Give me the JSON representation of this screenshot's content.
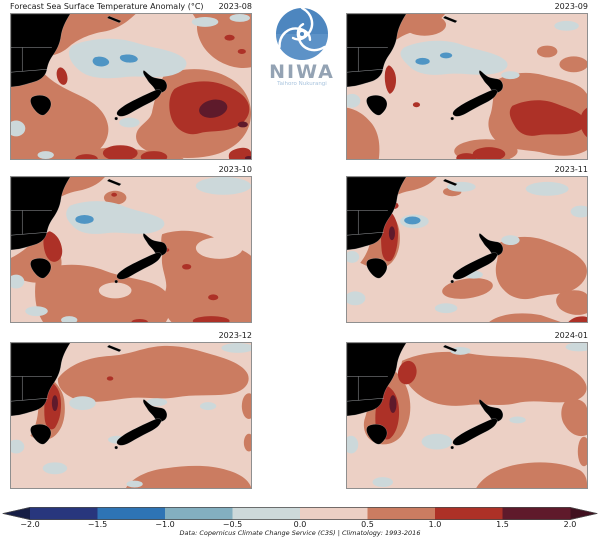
{
  "figure": {
    "title": "Forecast Sea Surface Temperature Anomaly (°C)",
    "attribution": "Data: Copernicus Climate Change Service (C3S) | Climatology: 1993-2016"
  },
  "logo": {
    "brand": "NIWA",
    "tagline": "Taihoro Nukurangi"
  },
  "panels": [
    {
      "date": "2023-08"
    },
    {
      "date": "2023-09"
    },
    {
      "date": "2023-10"
    },
    {
      "date": "2023-11"
    },
    {
      "date": "2023-12"
    },
    {
      "date": "2024-01"
    }
  ],
  "colorbar": {
    "ticks": [
      "−2.0",
      "−1.5",
      "−1.0",
      "−0.5",
      "0.0",
      "0.5",
      "1.0",
      "1.5",
      "2.0"
    ],
    "levels": [
      -2.0,
      -1.5,
      -1.0,
      -0.5,
      0.0,
      0.5,
      1.0,
      1.5,
      2.0
    ],
    "segment_colors": [
      "#28367d",
      "#2e74b5",
      "#83afc0",
      "#cdd9da",
      "#eccfc4",
      "#cb7c61",
      "#ad3127",
      "#5f1a2b"
    ],
    "under_color": "#161e45",
    "over_color": "#40101f"
  },
  "map_colors": {
    "land": "#000000",
    "sea_base": "#ecd0c5",
    "cool_patch": "#ccd8da",
    "cool_spot": "#4f95c4",
    "warm_band": "#cb7c61",
    "hot_patch": "#ad3127",
    "extreme_core": "#5e1a2b",
    "panel_border": "#8f8f8f",
    "coastline": "#e8e8e8",
    "state_border": "#c9cdd2",
    "logo_blue": "#4d86bf",
    "logo_blue_light": "#6b9cce",
    "logo_text": "#94a3b4",
    "logo_tagline": "#a9c4de"
  }
}
